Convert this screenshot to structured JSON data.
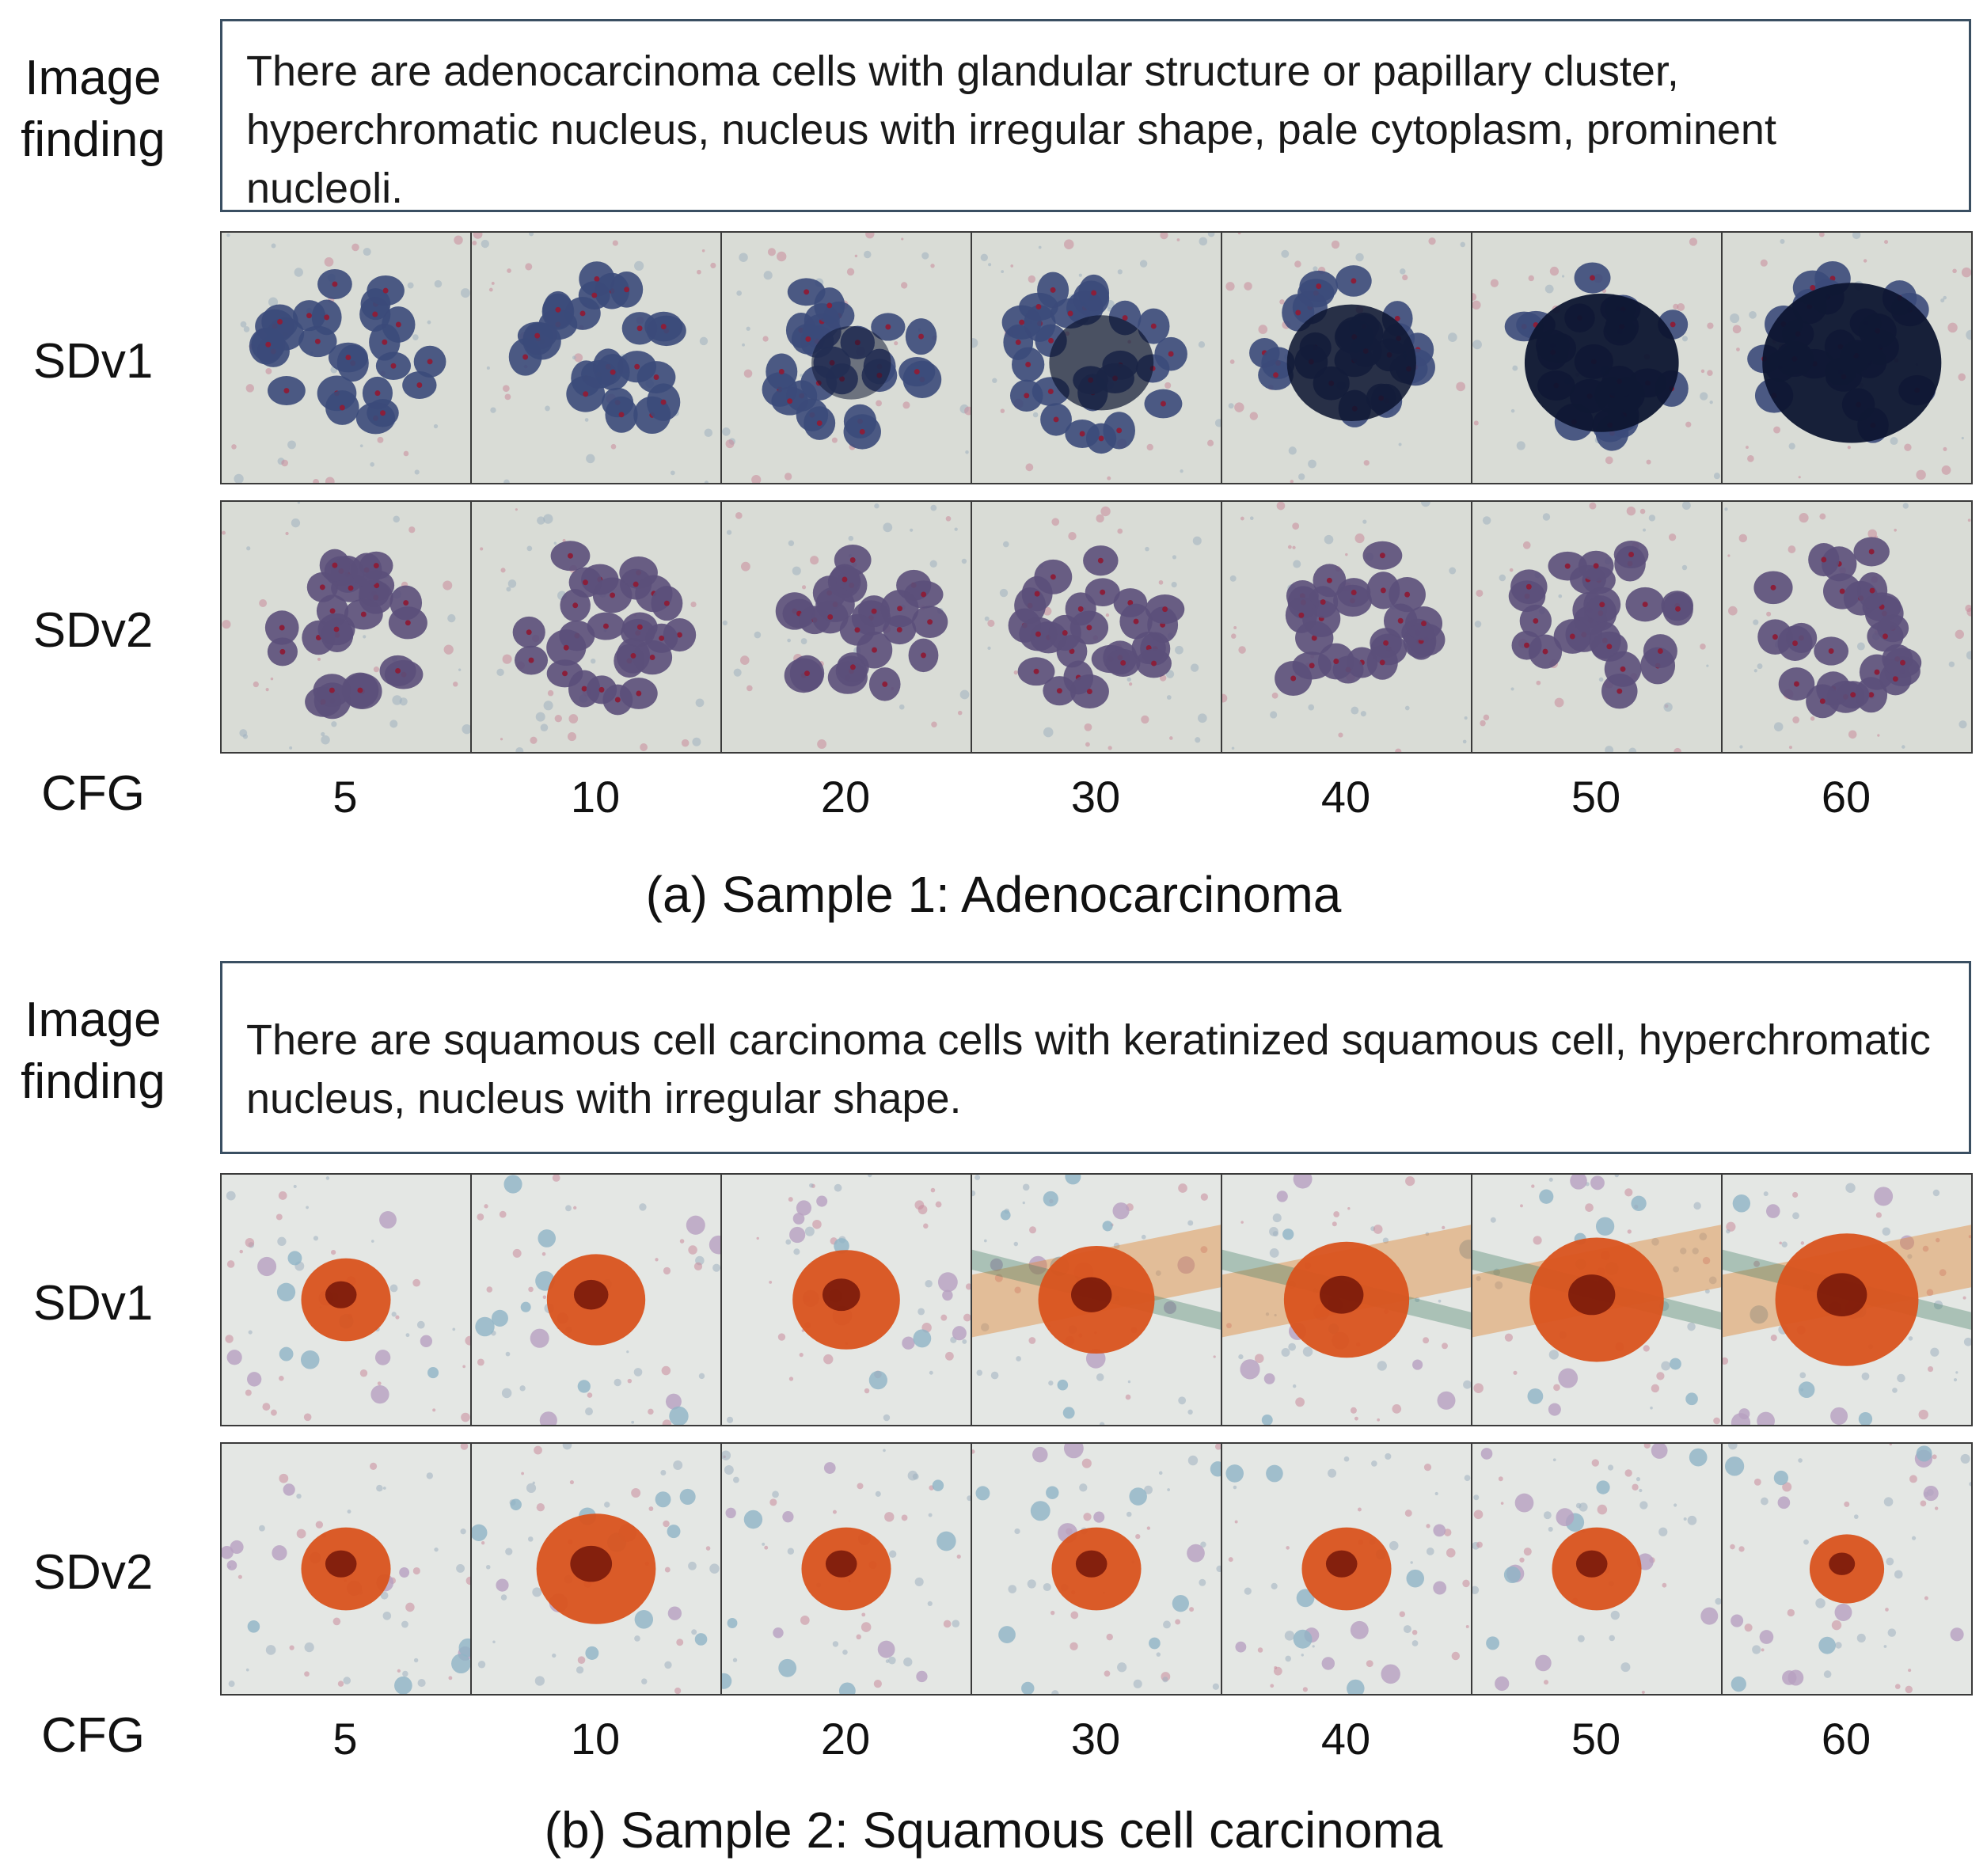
{
  "figure": {
    "samples": [
      {
        "finding_label": "Image\nfinding",
        "finding_text": "There are adenocarcinoma cells with glandular structure or papillary cluster, hyperchromatic nucleus, nucleus with irregular shape, pale cytoplasm, prominent nucleoli.",
        "rows": [
          {
            "label": "SDv1",
            "tiles": [
              "SDv1 adenocarcinoma CFG 5",
              "SDv1 adenocarcinoma CFG 10",
              "SDv1 adenocarcinoma CFG 20",
              "SDv1 adenocarcinoma CFG 30",
              "SDv1 adenocarcinoma CFG 40",
              "SDv1 adenocarcinoma CFG 50",
              "SDv1 adenocarcinoma CFG 60"
            ]
          },
          {
            "label": "SDv2",
            "tiles": [
              "SDv2 adenocarcinoma CFG 5",
              "SDv2 adenocarcinoma CFG 10",
              "SDv2 adenocarcinoma CFG 20",
              "SDv2 adenocarcinoma CFG 30",
              "SDv2 adenocarcinoma CFG 40",
              "SDv2 adenocarcinoma CFG 50",
              "SDv2 adenocarcinoma CFG 60"
            ]
          }
        ],
        "cfg_label": "CFG",
        "cfg_values": [
          "5",
          "10",
          "20",
          "30",
          "40",
          "50",
          "60"
        ],
        "caption": "(a) Sample 1: Adenocarcinoma"
      },
      {
        "finding_label": "Image\nfinding",
        "finding_text": "There are squamous cell carcinoma cells with keratinized squamous cell, hyperchromatic nucleus, nucleus with irregular shape.",
        "rows": [
          {
            "label": "SDv1",
            "tiles": [
              "SDv1 squamous CFG 5",
              "SDv1 squamous CFG 10",
              "SDv1 squamous CFG 20",
              "SDv1 squamous CFG 30",
              "SDv1 squamous CFG 40",
              "SDv1 squamous CFG 50",
              "SDv1 squamous CFG 60"
            ]
          },
          {
            "label": "SDv2",
            "tiles": [
              "SDv2 squamous CFG 5",
              "SDv2 squamous CFG 10",
              "SDv2 squamous CFG 20",
              "SDv2 squamous CFG 30",
              "SDv2 squamous CFG 40",
              "SDv2 squamous CFG 50",
              "SDv2 squamous CFG 60"
            ]
          }
        ],
        "cfg_label": "CFG",
        "cfg_values": [
          "5",
          "10",
          "20",
          "30",
          "40",
          "50",
          "60"
        ],
        "caption": "(b) Sample 2: Squamous cell carcinoma"
      }
    ],
    "colors": {
      "box_border": "#3a4f62",
      "adeno_bg": "#d9dcd6",
      "adeno_cell": "#3b4a7a",
      "adeno_dark": "#0d1530",
      "squamous_bg": "#e4e7e4",
      "squamous_cell": "#d9531e",
      "squamous_dark": "#7a1a0a"
    }
  }
}
